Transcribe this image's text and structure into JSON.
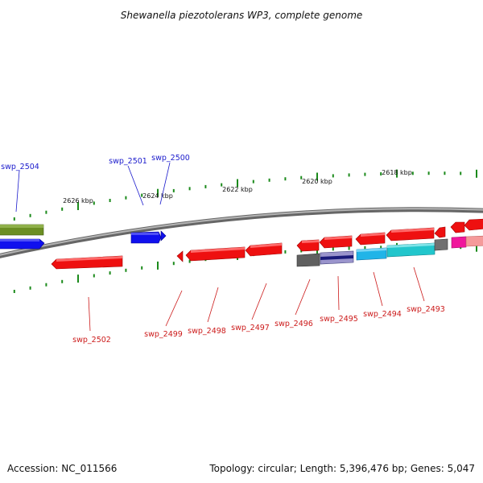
{
  "title": "Shewanella piezotolerans WP3, complete genome",
  "footer": {
    "accession": "Accession: NC_011566",
    "stats": "Topology: circular; Length: 5,396,476 bp; Genes: 5,047"
  },
  "colors": {
    "tick": "#1b8a1b",
    "backbone": "#8a8a8a",
    "label_forward": "#1a1acc",
    "label_reverse": "#cc1a1a"
  },
  "kbp_labels": [
    "2626 kbp",
    "2624 kbp",
    "2622 kbp",
    "2620 kbp",
    "2618 kbp"
  ],
  "gene_labels": {
    "swp_2504": "swp_2504",
    "swp_2501": "swp_2501",
    "swp_2500": "swp_2500",
    "swp_2502": "swp_2502",
    "swp_2499": "swp_2499",
    "swp_2498": "swp_2498",
    "swp_2497": "swp_2497",
    "swp_2496": "swp_2496",
    "swp_2495": "swp_2495",
    "swp_2494": "swp_2494",
    "swp_2493": "swp_2493"
  }
}
